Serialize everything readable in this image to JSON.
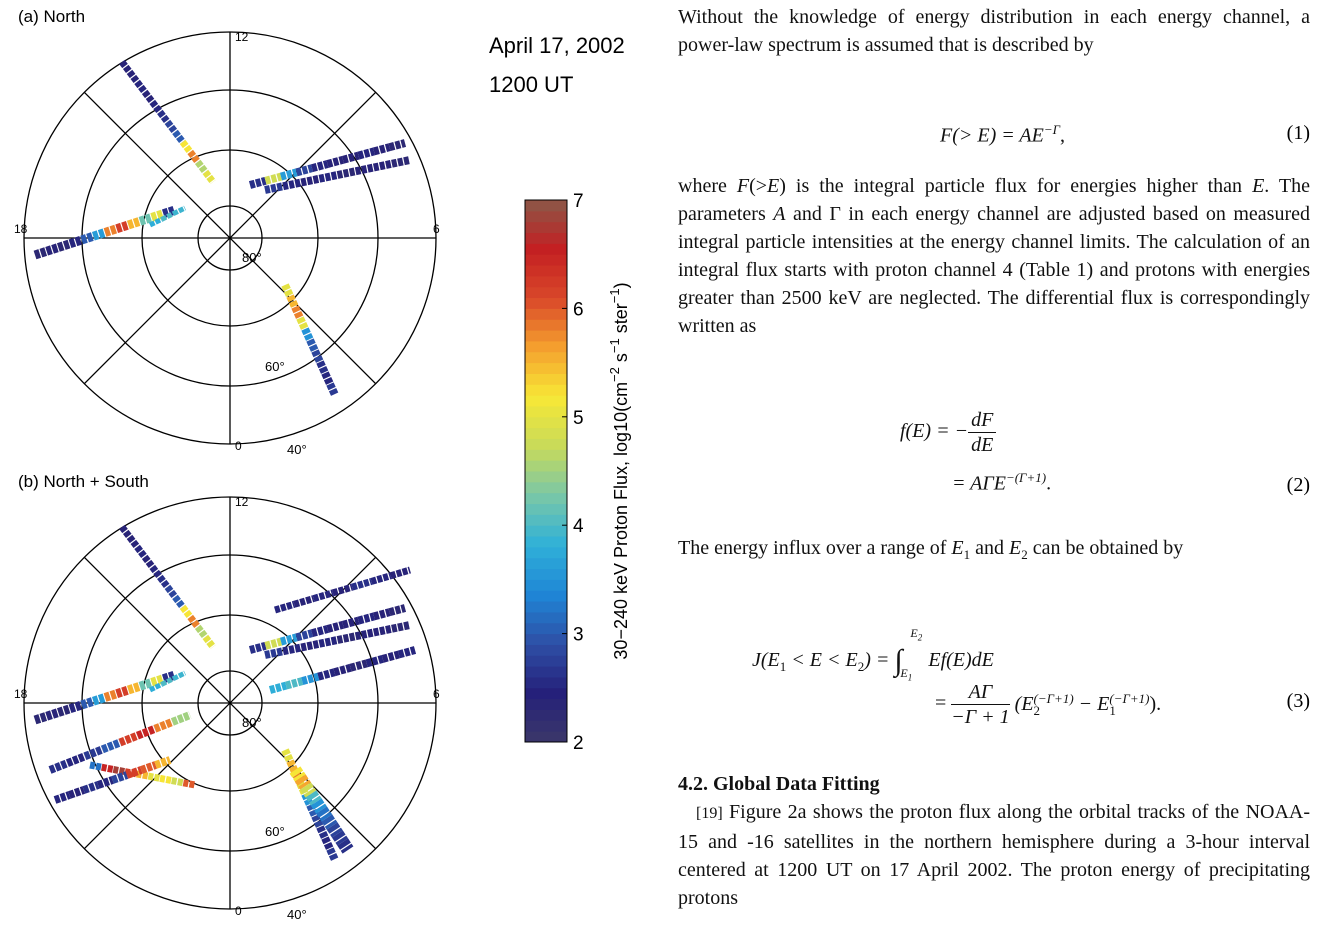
{
  "figure": {
    "date": "April 17, 2002",
    "time": "1200 UT",
    "colorbar": {
      "lim": [
        2,
        7
      ],
      "ticks": [
        2,
        3,
        4,
        5,
        6,
        7
      ],
      "label": [
        "30−240 keV Proton Flux, log10(cm",
        "−2",
        " s",
        "−1",
        " ster",
        "−1",
        ")"
      ],
      "colormap": [
        "#3b3869",
        "#25207a",
        "#2e4fa6",
        "#1f86d6",
        "#2fb0d8",
        "#79c7a8",
        "#c8da5a",
        "#f7e836",
        "#f5a12e",
        "#d9482a",
        "#c41f22",
        "#8b5848"
      ]
    },
    "panels": [
      {
        "title": "(a) North",
        "clock_labels": [
          "12",
          "18",
          "6",
          "0"
        ],
        "lat_labels": [
          "80°",
          "60°",
          "40°"
        ],
        "tracks": [
          [
            2.4,
            2.4,
            2.5,
            2.4,
            2.5,
            2.6,
            2.8,
            3.0,
            5.2,
            5.8,
            4.6,
            5.0
          ],
          [
            2.6,
            4.8,
            3.6,
            2.8,
            2.5,
            2.4,
            2.4,
            2.5,
            2.4,
            2.3
          ],
          [
            2.7,
            2.5,
            2.4,
            2.5,
            2.3,
            2.4,
            2.4,
            2.3
          ],
          [
            2.3,
            2.4,
            2.3,
            2.5,
            3.0,
            3.6,
            5.8,
            6.2,
            5.5,
            4.2,
            5.0,
            2.6
          ],
          [
            3.8,
            4.0,
            3.9
          ],
          [
            5.0,
            5.5,
            5.8,
            5.0,
            3.5,
            3.0,
            2.8,
            2.6,
            2.5,
            2.7
          ]
        ]
      },
      {
        "title": "(b) North + South",
        "clock_labels": [
          "12",
          "18",
          "6",
          "0"
        ],
        "lat_labels": [
          "80°",
          "60°",
          "40°"
        ],
        "tracks": [
          [
            2.4,
            2.4,
            2.5,
            2.4,
            2.5,
            2.6,
            2.8,
            3.0,
            5.2,
            5.8,
            4.6,
            5.0
          ],
          [
            2.6,
            4.8,
            3.6,
            2.8,
            2.5,
            2.4,
            2.4,
            2.5,
            2.4,
            2.3
          ],
          [
            2.7,
            2.5,
            2.4,
            2.5,
            2.3,
            2.4,
            2.4,
            2.3
          ],
          [
            2.3,
            2.4,
            2.3,
            2.5,
            3.0,
            3.6,
            5.8,
            6.2,
            5.5,
            4.2,
            5.0,
            2.6
          ],
          [
            3.8,
            4.0,
            3.9
          ],
          [
            5.0,
            5.5,
            5.8,
            5.0,
            3.5,
            3.0,
            2.8,
            2.6,
            2.5,
            2.7
          ],
          [
            2.6,
            2.5,
            2.7,
            3.0,
            6.2,
            6.5,
            5.8,
            4.5
          ],
          [
            3.2,
            6.5,
            6.8,
            6.2,
            5.5,
            5.0,
            5.2,
            4.8,
            6.0
          ],
          [
            2.5,
            2.4,
            2.6,
            2.5,
            2.8,
            6.2,
            6.0,
            5.5
          ],
          [
            3.8,
            4.0,
            3.5,
            2.5,
            2.4,
            2.3,
            2.5,
            2.4,
            2.5
          ],
          [
            2.5,
            2.4,
            2.5,
            2.4,
            2.6,
            2.5,
            2.4
          ],
          [
            5.2,
            5.6,
            4.8,
            4.0,
            3.5,
            3.2,
            3.0,
            2.8,
            2.7,
            2.6
          ]
        ]
      }
    ]
  },
  "text": {
    "p1": "Without the knowledge of energy distribution in each energy channel, a power-law spectrum is assumed that is described by",
    "eq1": {
      "lhs": "F(> E) = AE",
      "sup": "−Γ",
      "tail": ",",
      "num": "(1)"
    },
    "p2": [
      "where ",
      "F",
      "(>",
      "E",
      ") is the integral particle flux for energies higher than ",
      "E",
      ". The parameters ",
      "A",
      " and Γ in each energy channel are adjusted based on measured integral particle intensities at the energy channel limits. The calculation of an integral flux starts with proton channel 4 (Table 1) and protons with energies greater than 2500 keV are neglected. The differential flux is correspondingly written as"
    ],
    "eq2": {
      "l1": "f(E) = −",
      "top": "dF",
      "bottom": "dE",
      "l2": "= AΓE",
      "sup": "−(Γ+1)",
      "tail": ".",
      "num": "(2)"
    },
    "p3": [
      "The energy influx over a range of ",
      "E",
      "1",
      " and ",
      "E",
      "2",
      " can be obtained by"
    ],
    "eq3": {
      "a": "J(E",
      "s1": "1",
      "b": " < E < E",
      "s2": "2",
      "c": ") = ",
      "int": "∫",
      "up": "E",
      "up_sub": "2",
      "lo": "E",
      "lo_sub": "1",
      "body": "Ef(E)dE",
      "eq": "=",
      "top": "AΓ",
      "bottom": "−Γ + 1",
      "open": "(E",
      "e2sub": "2",
      "e2sup": "(−Γ+1)",
      "minus": " − E",
      "e1sub": "1",
      "e1sup": "(−Γ+1)",
      "close": ").",
      "num": "(3)"
    },
    "heading": "4.2.  Global Data Fitting",
    "p4_num": "[19]",
    "p4": " Figure 2a shows the proton flux along the orbital tracks of the NOAA-15 and -16 satellites in the northern hemisphere during a 3-hour interval centered at 1200 UT on 17 April 2002. The proton energy of precipitating protons"
  }
}
